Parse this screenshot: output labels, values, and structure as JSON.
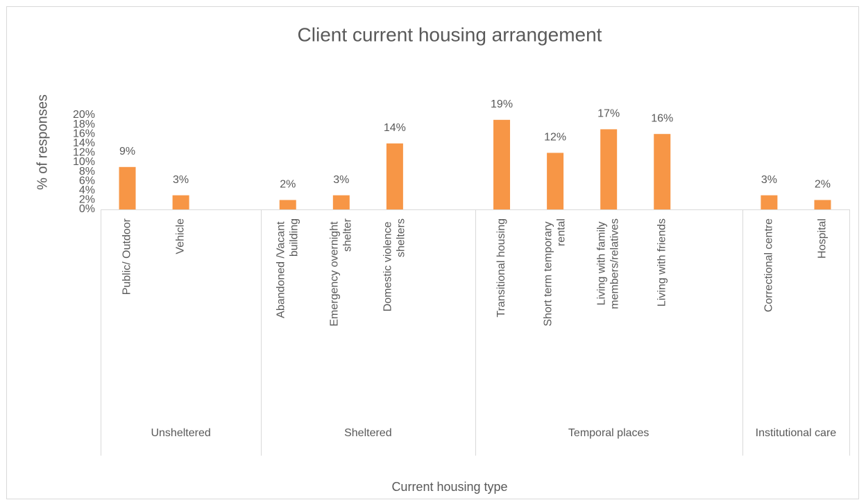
{
  "chart_data": {
    "type": "bar",
    "title": "Client current housing arrangement",
    "y_label": "% of responses",
    "x_label": "Current housing type",
    "color": "#f79646",
    "ylim": [
      0,
      20
    ],
    "yticks": [
      {
        "value": 0,
        "label": "0%"
      },
      {
        "value": 2,
        "label": "2%"
      },
      {
        "value": 4,
        "label": "4%"
      },
      {
        "value": 6,
        "label": "6%"
      },
      {
        "value": 8,
        "label": "8%"
      },
      {
        "value": 10,
        "label": "10%"
      },
      {
        "value": 12,
        "label": "12%"
      },
      {
        "value": 14,
        "label": "14%"
      },
      {
        "value": 16,
        "label": "16%"
      },
      {
        "value": 18,
        "label": "18%"
      },
      {
        "value": 20,
        "label": "20%"
      }
    ],
    "grid": false,
    "groups": [
      {
        "label": "Unsheltered",
        "categories": [
          "Public/ Outdoor",
          "Vehicle",
          null
        ],
        "values": [
          9,
          3,
          null
        ],
        "value_labels": [
          "9%",
          "3%",
          null
        ]
      },
      {
        "label": "Sheltered",
        "categories": [
          "Abandoned /Vacant building",
          "Emergency overnight shelter",
          "Domestic violence shelters",
          null
        ],
        "values": [
          2,
          3,
          14,
          null
        ],
        "value_labels": [
          "2%",
          "3%",
          "14%",
          null
        ]
      },
      {
        "label": "Temporal places",
        "categories": [
          "Transitional housing",
          "Short term temporary rental",
          "Living with family members/relatives",
          "Living with friends",
          null
        ],
        "values": [
          19,
          12,
          17,
          16,
          null
        ],
        "value_labels": [
          "19%",
          "12%",
          "17%",
          "16%",
          null
        ]
      },
      {
        "label": "Institutional care",
        "categories": [
          "Correctional centre",
          "Hospital"
        ],
        "values": [
          3,
          2
        ],
        "value_labels": [
          "3%",
          "2%"
        ]
      }
    ]
  }
}
